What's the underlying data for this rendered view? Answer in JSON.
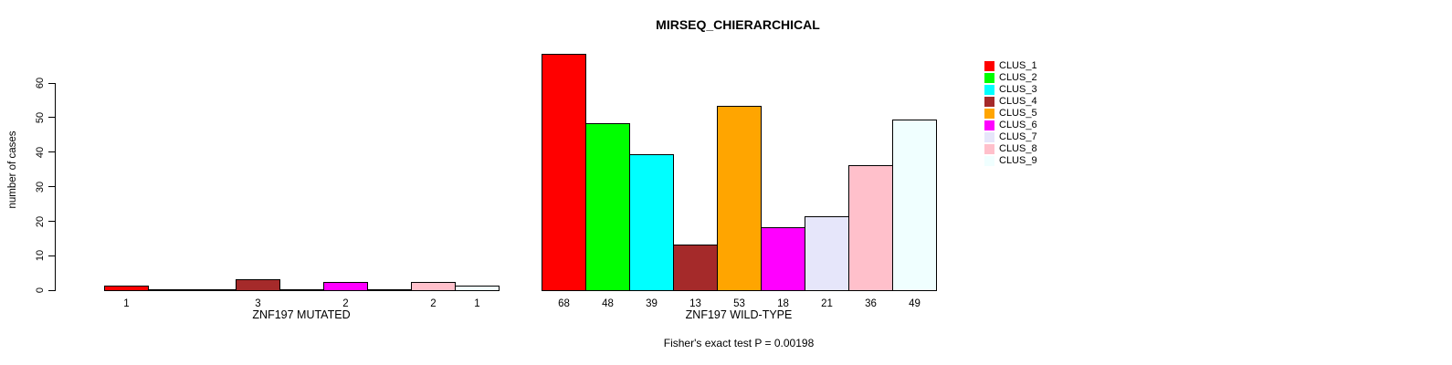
{
  "chart_data": {
    "type": "bar",
    "title": "MIRSEQ_CHIERARCHICAL",
    "ylabel": "number of cases",
    "ylim": [
      0,
      60
    ],
    "yticks": [
      0,
      10,
      20,
      30,
      40,
      50,
      60
    ],
    "grid": false,
    "legend_position": "right",
    "categories": [
      "CLUS_1",
      "CLUS_2",
      "CLUS_3",
      "CLUS_4",
      "CLUS_5",
      "CLUS_6",
      "CLUS_7",
      "CLUS_8",
      "CLUS_9"
    ],
    "colors": [
      "#FF0000",
      "#00FF00",
      "#00FFFF",
      "#A52A2A",
      "#FFA500",
      "#FF00FF",
      "#E6E6FA",
      "#FFC0CB",
      "#F0FFFF"
    ],
    "groups": [
      {
        "label": "ZNF197 MUTATED",
        "values": [
          1,
          0,
          0,
          3,
          0,
          2,
          0,
          2,
          1
        ]
      },
      {
        "label": "ZNF197 WILD-TYPE",
        "values": [
          68,
          48,
          39,
          13,
          53,
          18,
          21,
          36,
          49
        ]
      }
    ],
    "footer": "Fisher's exact test P = 0.00198"
  }
}
